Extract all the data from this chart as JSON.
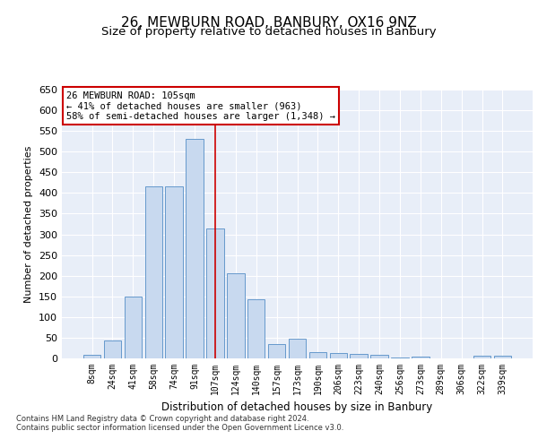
{
  "title1": "26, MEWBURN ROAD, BANBURY, OX16 9NZ",
  "title2": "Size of property relative to detached houses in Banbury",
  "xlabel": "Distribution of detached houses by size in Banbury",
  "ylabel": "Number of detached properties",
  "categories": [
    "8sqm",
    "24sqm",
    "41sqm",
    "58sqm",
    "74sqm",
    "91sqm",
    "107sqm",
    "124sqm",
    "140sqm",
    "157sqm",
    "173sqm",
    "190sqm",
    "206sqm",
    "223sqm",
    "240sqm",
    "256sqm",
    "273sqm",
    "289sqm",
    "306sqm",
    "322sqm",
    "339sqm"
  ],
  "values": [
    8,
    43,
    150,
    415,
    415,
    530,
    315,
    205,
    143,
    35,
    48,
    15,
    13,
    10,
    8,
    2,
    5,
    0,
    0,
    7,
    7
  ],
  "bar_color": "#c8d9ef",
  "bar_edge_color": "#6699cc",
  "highlight_index": 6,
  "vline_color": "#cc0000",
  "annotation_text": "26 MEWBURN ROAD: 105sqm\n← 41% of detached houses are smaller (963)\n58% of semi-detached houses are larger (1,348) →",
  "annotation_box_color": "white",
  "annotation_box_edge_color": "#cc0000",
  "footer1": "Contains HM Land Registry data © Crown copyright and database right 2024.",
  "footer2": "Contains public sector information licensed under the Open Government Licence v3.0.",
  "ylim": [
    0,
    650
  ],
  "yticks": [
    0,
    50,
    100,
    150,
    200,
    250,
    300,
    350,
    400,
    450,
    500,
    550,
    600,
    650
  ],
  "bg_color": "#e8eef8",
  "grid_color": "#ffffff",
  "title1_fontsize": 11,
  "title2_fontsize": 9.5
}
